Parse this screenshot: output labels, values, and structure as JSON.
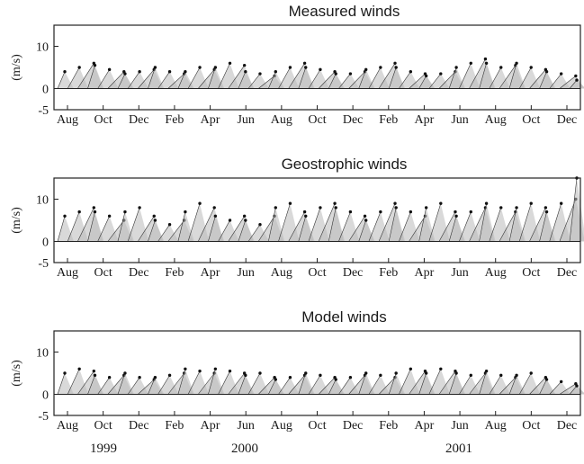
{
  "chart_data": [
    {
      "type": "stick-vector",
      "title": "Measured winds",
      "ylabel": "(m/s)",
      "ylim": [
        -5,
        15
      ],
      "yticks": [
        "10",
        "0",
        "-5"
      ],
      "ytick_values": [
        10,
        0,
        -5
      ],
      "months": [
        "Aug",
        "Oct",
        "Dec",
        "Feb",
        "Apr",
        "Jun",
        "Aug",
        "Oct",
        "Dec",
        "Feb",
        "Apr",
        "Jun",
        "Aug",
        "Oct",
        "Dec"
      ],
      "series": [
        {
          "values": [
            4,
            5,
            6,
            5.5,
            4.5,
            4,
            3.5,
            4,
            4.5,
            5,
            4,
            3.5,
            4,
            5,
            4.5,
            5,
            6,
            5.5,
            4,
            3.5,
            3,
            4,
            5,
            6,
            5,
            4.5,
            4,
            3.5,
            3.5,
            4,
            4.5,
            5,
            6,
            5,
            4,
            3.5,
            3,
            3.5,
            4,
            5,
            6,
            7,
            6,
            5,
            5.5,
            6,
            5,
            4.5,
            4,
            3.5,
            3,
            2
          ]
        }
      ]
    },
    {
      "type": "stick-vector",
      "title": "Geostrophic winds",
      "ylabel": "(m/s)",
      "ylim": [
        -5,
        15
      ],
      "yticks": [
        "10",
        "0",
        "-5"
      ],
      "ytick_values": [
        10,
        0,
        -5
      ],
      "months": [
        "Aug",
        "Oct",
        "Dec",
        "Feb",
        "Apr",
        "Jun",
        "Aug",
        "Oct",
        "Dec",
        "Feb",
        "Apr",
        "Jun",
        "Aug",
        "Oct",
        "Dec"
      ],
      "series": [
        {
          "values": [
            6,
            7,
            8,
            7,
            6,
            5,
            7,
            8,
            6,
            5,
            4,
            5,
            7,
            9,
            8,
            6,
            5,
            6,
            5,
            4,
            6,
            8,
            9,
            7,
            6,
            8,
            9,
            8,
            7,
            6,
            5,
            7,
            9,
            8,
            7,
            6,
            8,
            9,
            7,
            6,
            7,
            8,
            9,
            8,
            7,
            8,
            9,
            8,
            7,
            9,
            10,
            15
          ]
        }
      ]
    },
    {
      "type": "stick-vector",
      "title": "Model winds",
      "ylabel": "(m/s)",
      "ylim": [
        -5,
        15
      ],
      "yticks": [
        "10",
        "0",
        "-5"
      ],
      "ytick_values": [
        10,
        0,
        -5
      ],
      "months": [
        "Aug",
        "Oct",
        "Dec",
        "Feb",
        "Apr",
        "Jun",
        "Aug",
        "Oct",
        "Dec",
        "Feb",
        "Apr",
        "Jun",
        "Aug",
        "Oct",
        "Dec"
      ],
      "series": [
        {
          "values": [
            5,
            6,
            5.5,
            4.5,
            4,
            4.5,
            5,
            4,
            3.5,
            4,
            4.5,
            5,
            6,
            5.5,
            5,
            6,
            5.5,
            5,
            4.5,
            5,
            4,
            3.5,
            4,
            4.5,
            5,
            4.5,
            4,
            3.5,
            4,
            4.5,
            5,
            4.5,
            4,
            5,
            6,
            5.5,
            5,
            6,
            5.5,
            5,
            4.5,
            5,
            5.5,
            4.5,
            4,
            4.5,
            5,
            4,
            3.5,
            3,
            2.5,
            2
          ]
        }
      ]
    }
  ],
  "years": [
    "1999",
    "2000",
    "2001"
  ]
}
